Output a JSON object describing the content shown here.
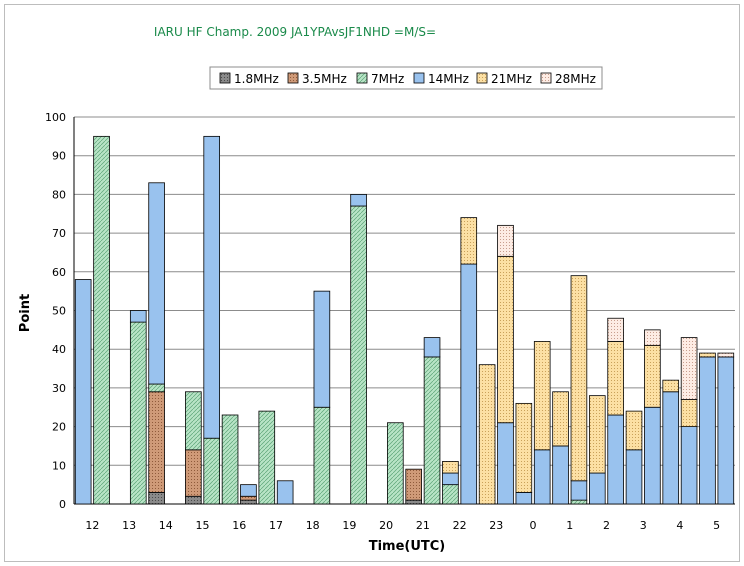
{
  "chart_data": {
    "type": "bar",
    "stacked": true,
    "title": "IARU HF Champ. 2009    JA1YPAvsJF1NHD    =M/S=",
    "xlabel": "Time(UTC)",
    "ylabel": "Point",
    "ylim": [
      0,
      100
    ],
    "yticks": [
      0,
      10,
      20,
      30,
      40,
      50,
      60,
      70,
      80,
      90,
      100
    ],
    "grid": true,
    "legend_position": "top",
    "hour_labels": [
      "12",
      "13",
      "14",
      "15",
      "16",
      "17",
      "18",
      "19",
      "20",
      "21",
      "22",
      "23",
      "0",
      "1",
      "2",
      "3",
      "4",
      "5"
    ],
    "series": [
      {
        "name": "1.8MHz",
        "color": "#808080",
        "pattern": "dots-dark",
        "values": [
          0,
          0,
          0,
          0,
          3,
          0,
          2,
          0,
          0,
          1,
          0,
          0,
          0,
          0,
          0,
          0,
          0,
          0,
          1,
          0,
          0,
          0,
          0,
          0,
          0,
          0,
          0,
          0,
          0,
          0,
          0,
          0,
          0,
          0,
          0,
          0
        ]
      },
      {
        "name": "3.5MHz",
        "color": "#c8906e",
        "pattern": "dots-dark",
        "values": [
          0,
          0,
          0,
          0,
          26,
          0,
          12,
          0,
          0,
          1,
          0,
          0,
          0,
          0,
          0,
          0,
          0,
          0,
          8,
          0,
          0,
          0,
          0,
          0,
          0,
          0,
          0,
          0,
          0,
          0,
          0,
          0,
          0,
          0,
          0,
          0
        ]
      },
      {
        "name": "7MHz",
        "color": "#a6dcb9",
        "pattern": "hatch",
        "values": [
          0,
          95,
          0,
          47,
          2,
          0,
          15,
          17,
          23,
          0,
          24,
          0,
          0,
          25,
          0,
          77,
          0,
          21,
          0,
          38,
          5,
          0,
          0,
          0,
          0,
          0,
          0,
          1,
          0,
          0,
          0,
          0,
          0,
          0,
          0,
          0
        ]
      },
      {
        "name": "14MHz",
        "color": "#99c2ee",
        "pattern": "none",
        "values": [
          58,
          0,
          0,
          3,
          52,
          0,
          0,
          78,
          0,
          3,
          0,
          6,
          0,
          30,
          0,
          3,
          0,
          0,
          0,
          5,
          3,
          62,
          0,
          21,
          3,
          14,
          15,
          5,
          8,
          23,
          14,
          25,
          29,
          20,
          38,
          38
        ]
      },
      {
        "name": "21MHz",
        "color": "#fcd894",
        "pattern": "dots",
        "values": [
          0,
          0,
          0,
          0,
          0,
          0,
          0,
          0,
          0,
          0,
          0,
          0,
          0,
          0,
          0,
          0,
          0,
          0,
          0,
          0,
          3,
          12,
          36,
          43,
          23,
          28,
          14,
          53,
          20,
          19,
          10,
          16,
          3,
          7,
          1,
          0
        ]
      },
      {
        "name": "28MHz",
        "color": "#fbe4d8",
        "pattern": "dots",
        "values": [
          0,
          0,
          0,
          0,
          0,
          0,
          0,
          0,
          0,
          0,
          0,
          0,
          0,
          0,
          0,
          0,
          0,
          0,
          0,
          0,
          0,
          0,
          0,
          8,
          0,
          0,
          0,
          0,
          0,
          6,
          0,
          4,
          0,
          16,
          0,
          1
        ]
      }
    ]
  }
}
